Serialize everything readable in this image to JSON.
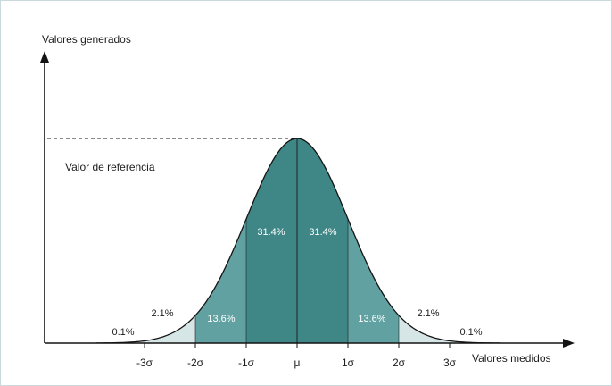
{
  "y_axis_label": "Valores generados",
  "x_axis_label": "Valores medidos",
  "reference_label": "Valor de referencia",
  "colors": {
    "outer": "#d6e6e6",
    "second": "#62a1a1",
    "center": "#3f8787",
    "line": "#141414",
    "inner_text": "#ffffff"
  },
  "chart_data": {
    "type": "area",
    "title": "",
    "xlabel": "Valores medidos",
    "ylabel": "Valores generados",
    "ticks": [
      "-3σ",
      "-2σ",
      "-1σ",
      "μ",
      "1σ",
      "2σ",
      "3σ"
    ],
    "regions": [
      {
        "from": "-3σ",
        "to": "-2σ",
        "label": "2.1%",
        "value": 2.1
      },
      {
        "from": "-2σ",
        "to": "-1σ",
        "label": "13.6%",
        "value": 13.6
      },
      {
        "from": "-1σ",
        "to": "μ",
        "label": "31.4%",
        "value": 31.4
      },
      {
        "from": "μ",
        "to": "1σ",
        "label": "31.4%",
        "value": 31.4
      },
      {
        "from": "1σ",
        "to": "2σ",
        "label": "13.6%",
        "value": 13.6
      },
      {
        "from": "2σ",
        "to": "3σ",
        "label": "2.1%",
        "value": 2.1
      }
    ],
    "tails": [
      {
        "side": "left",
        "label": "0.1%",
        "value": 0.1
      },
      {
        "side": "right",
        "label": "0.1%",
        "value": 0.1
      }
    ]
  }
}
